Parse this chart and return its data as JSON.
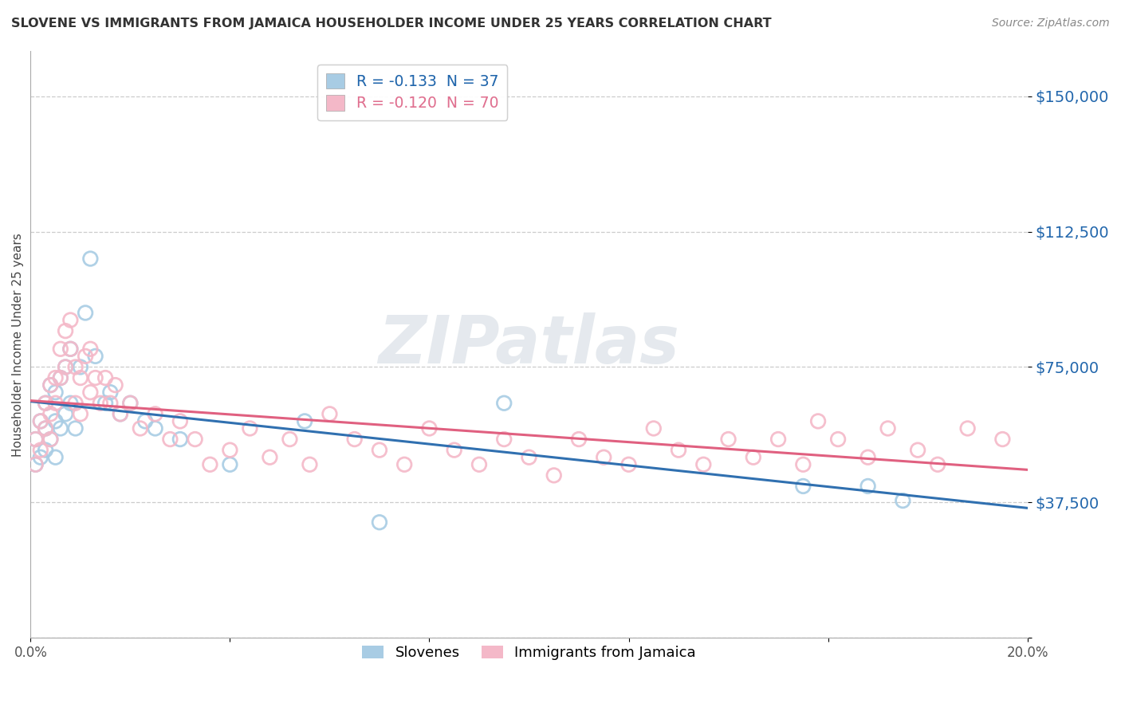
{
  "title": "SLOVENE VS IMMIGRANTS FROM JAMAICA HOUSEHOLDER INCOME UNDER 25 YEARS CORRELATION CHART",
  "source": "Source: ZipAtlas.com",
  "ylabel": "Householder Income Under 25 years",
  "xlim": [
    0.0,
    0.2
  ],
  "ylim": [
    0,
    162500
  ],
  "yticks": [
    0,
    37500,
    75000,
    112500,
    150000
  ],
  "ytick_labels": [
    "",
    "$37,500",
    "$75,000",
    "$112,500",
    "$150,000"
  ],
  "xticks": [
    0.0,
    0.04,
    0.08,
    0.12,
    0.16,
    0.2
  ],
  "xtick_labels": [
    "0.0%",
    "",
    "",
    "",
    "",
    "20.0%"
  ],
  "blue_R": -0.133,
  "blue_N": 37,
  "pink_R": -0.12,
  "pink_N": 70,
  "blue_scatter_color": "#a8cce4",
  "pink_scatter_color": "#f4b8c8",
  "blue_line_color": "#3070b0",
  "pink_line_color": "#e06080",
  "blue_text_color": "#2166ac",
  "pink_text_color": "#e07090",
  "watermark": "ZIPatlas",
  "legend_label_blue": "Slovenes",
  "legend_label_pink": "Immigrants from Jamaica",
  "blue_x": [
    0.001,
    0.001,
    0.002,
    0.002,
    0.003,
    0.003,
    0.003,
    0.004,
    0.004,
    0.005,
    0.005,
    0.005,
    0.006,
    0.006,
    0.007,
    0.007,
    0.008,
    0.008,
    0.009,
    0.01,
    0.011,
    0.012,
    0.013,
    0.015,
    0.016,
    0.018,
    0.02,
    0.023,
    0.025,
    0.03,
    0.04,
    0.055,
    0.07,
    0.095,
    0.155,
    0.168,
    0.175
  ],
  "blue_y": [
    55000,
    48000,
    60000,
    50000,
    65000,
    58000,
    52000,
    70000,
    55000,
    68000,
    60000,
    50000,
    72000,
    58000,
    75000,
    62000,
    80000,
    65000,
    58000,
    75000,
    90000,
    105000,
    78000,
    65000,
    68000,
    62000,
    65000,
    60000,
    58000,
    55000,
    48000,
    60000,
    32000,
    65000,
    42000,
    42000,
    38000
  ],
  "pink_x": [
    0.001,
    0.001,
    0.002,
    0.002,
    0.003,
    0.003,
    0.004,
    0.004,
    0.004,
    0.005,
    0.005,
    0.006,
    0.006,
    0.007,
    0.007,
    0.008,
    0.008,
    0.009,
    0.009,
    0.01,
    0.01,
    0.011,
    0.012,
    0.012,
    0.013,
    0.014,
    0.015,
    0.016,
    0.017,
    0.018,
    0.02,
    0.022,
    0.025,
    0.028,
    0.03,
    0.033,
    0.036,
    0.04,
    0.044,
    0.048,
    0.052,
    0.056,
    0.06,
    0.065,
    0.07,
    0.075,
    0.08,
    0.085,
    0.09,
    0.095,
    0.1,
    0.105,
    0.11,
    0.115,
    0.12,
    0.125,
    0.13,
    0.135,
    0.14,
    0.145,
    0.15,
    0.155,
    0.158,
    0.162,
    0.168,
    0.172,
    0.178,
    0.182,
    0.188,
    0.195
  ],
  "pink_y": [
    55000,
    48000,
    60000,
    52000,
    65000,
    58000,
    70000,
    62000,
    55000,
    72000,
    65000,
    80000,
    72000,
    85000,
    75000,
    88000,
    80000,
    75000,
    65000,
    72000,
    62000,
    78000,
    68000,
    80000,
    72000,
    65000,
    72000,
    65000,
    70000,
    62000,
    65000,
    58000,
    62000,
    55000,
    60000,
    55000,
    48000,
    52000,
    58000,
    50000,
    55000,
    48000,
    62000,
    55000,
    52000,
    48000,
    58000,
    52000,
    48000,
    55000,
    50000,
    45000,
    55000,
    50000,
    48000,
    58000,
    52000,
    48000,
    55000,
    50000,
    55000,
    48000,
    60000,
    55000,
    50000,
    58000,
    52000,
    48000,
    58000,
    55000
  ]
}
